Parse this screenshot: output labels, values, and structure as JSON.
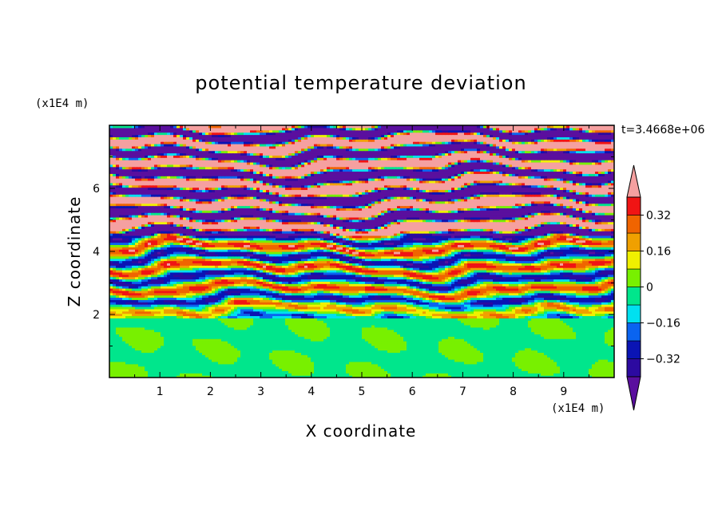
{
  "chart_data": {
    "type": "heatmap",
    "title": "potential temperature deviation",
    "xlabel": "X coordinate",
    "ylabel": "Z coordinate",
    "x_unit": "(x1E4 m)",
    "y_unit": "(x1E4 m)",
    "time_label": "t=3.4668e+06",
    "xlim": [
      0,
      10
    ],
    "ylim": [
      0,
      8
    ],
    "x_ticks": [
      1,
      2,
      3,
      4,
      5,
      6,
      7,
      8,
      9
    ],
    "y_ticks": [
      2,
      4,
      6
    ],
    "colorbar": {
      "levels": [
        -0.4,
        -0.32,
        -0.24,
        -0.16,
        -0.08,
        0,
        0.08,
        0.16,
        0.24,
        0.32,
        0.4
      ],
      "labels": [
        "0.32",
        "0.16",
        "0",
        "−0.16",
        "−0.32"
      ],
      "label_values": [
        0.32,
        0.16,
        0,
        -0.16,
        -0.32
      ],
      "colors": [
        "#5a0f9e",
        "#2c0aa0",
        "#0a14b4",
        "#0a64f0",
        "#00e0f0",
        "#00e68c",
        "#78f000",
        "#f0f000",
        "#f0a000",
        "#f06400",
        "#f01414",
        "#f5a0a0"
      ],
      "extend": "both"
    },
    "bands": [
      {
        "z": [
          0,
          1.9
        ],
        "pattern": "green-mix"
      },
      {
        "z": [
          1.9,
          2.2
        ],
        "pattern": "mixed-thin"
      },
      {
        "z": [
          2.2,
          4.5
        ],
        "pattern": "mixed"
      },
      {
        "z": [
          4.5,
          8.0
        ],
        "pattern": "stripes"
      }
    ]
  }
}
